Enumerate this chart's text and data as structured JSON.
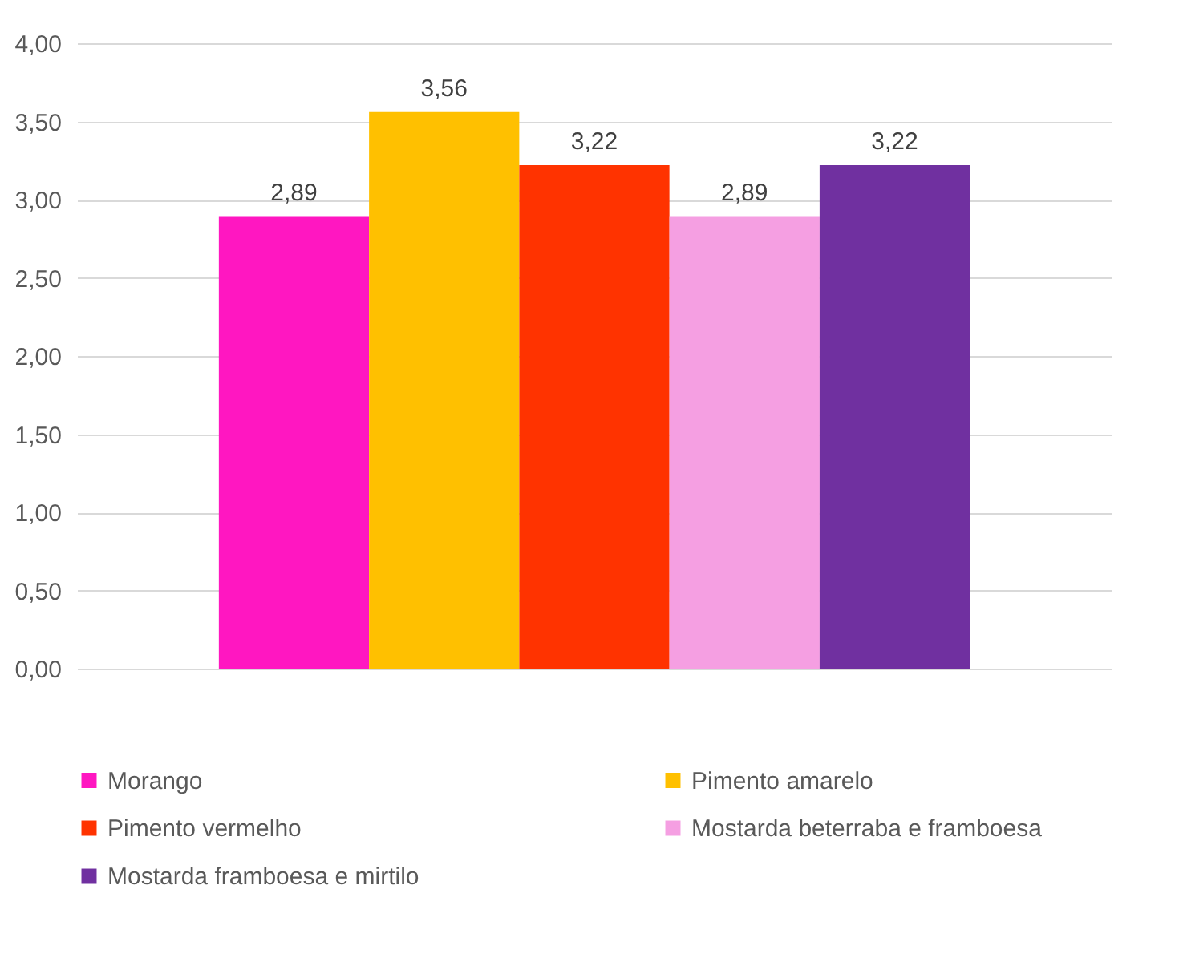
{
  "chart_data": {
    "type": "bar",
    "categories": [
      null
    ],
    "series": [
      {
        "name": "Morango",
        "color": "#ff17c1",
        "values": [
          2.89
        ],
        "value_labels": [
          "2,89"
        ]
      },
      {
        "name": "Pimento amarelo",
        "color": "#ffc000",
        "values": [
          3.56
        ],
        "value_labels": [
          "3,56"
        ]
      },
      {
        "name": "Pimento vermelho",
        "color": "#ff3300",
        "values": [
          3.22
        ],
        "value_labels": [
          "3,22"
        ]
      },
      {
        "name": "Mostarda beterraba e framboesa",
        "color": "#f59fe2",
        "values": [
          2.89
        ],
        "value_labels": [
          "2,89"
        ]
      },
      {
        "name": "Mostarda framboesa e mirtilo",
        "color": "#7030a0",
        "values": [
          3.22
        ],
        "value_labels": [
          "3,22"
        ]
      }
    ],
    "ylim": [
      0,
      4
    ],
    "yticks": [
      {
        "value": 0,
        "label": "0,00"
      },
      {
        "value": 0.5,
        "label": "0,50"
      },
      {
        "value": 1,
        "label": "1,00"
      },
      {
        "value": 1.5,
        "label": "1,50"
      },
      {
        "value": 2,
        "label": "2,00"
      },
      {
        "value": 2.5,
        "label": "2,50"
      },
      {
        "value": 3,
        "label": "3,00"
      },
      {
        "value": 3.5,
        "label": "3,50"
      },
      {
        "value": 4,
        "label": "4,00"
      }
    ],
    "grid": "y",
    "legend": "bottom"
  }
}
